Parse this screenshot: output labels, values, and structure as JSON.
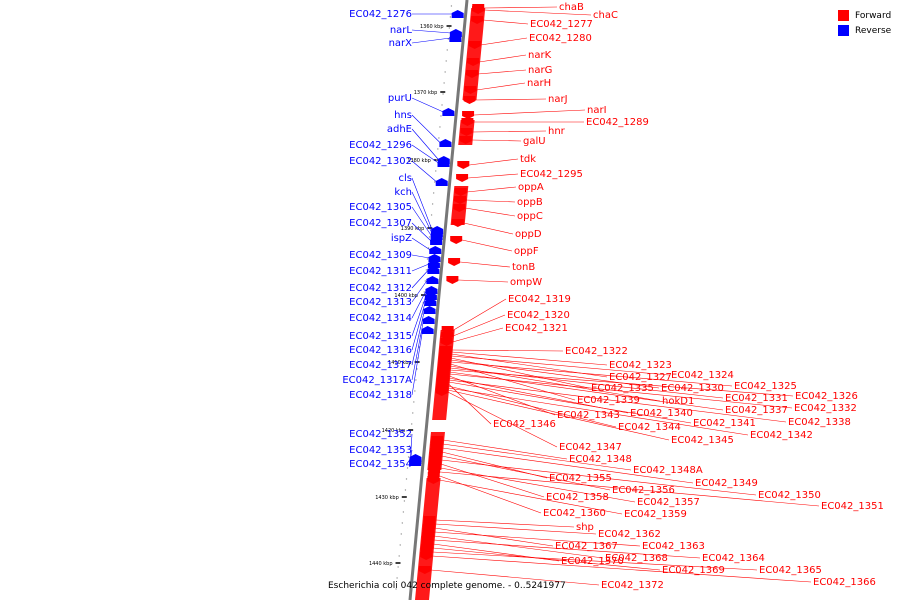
{
  "title": "Escherichia coli 042 complete genome. - 0..5241977",
  "legend": [
    {
      "label": "Forward",
      "color": "#ff0000"
    },
    {
      "label": "Reverse",
      "color": "#0000ff"
    }
  ],
  "colors": {
    "forward": "#ff0000",
    "reverse": "#0000ff",
    "backbone": "#777777"
  },
  "scale_labels": [
    "1360 kbp",
    "1370 kbp",
    "1380 kbp",
    "1390 kbp",
    "1400 kbp",
    "1410 kbp",
    "1420 kbp",
    "1430 kbp",
    "1440 kbp"
  ],
  "reverse_labels": [
    "EC042_1276",
    "narL",
    "narX",
    "purU",
    "hns",
    "adhE",
    "EC042_1296",
    "EC042_1302",
    "cls",
    "kch",
    "EC042_1305",
    "EC042_1307",
    "ispZ",
    "EC042_1309",
    "EC042_1311",
    "EC042_1312",
    "EC042_1313",
    "EC042_1314",
    "EC042_1315",
    "EC042_1316",
    "EC042_1317",
    "EC042_1317A",
    "EC042_1318",
    "EC042_1352",
    "EC042_1353",
    "EC042_1354"
  ],
  "forward_labels": [
    "chaB",
    "chaC",
    "EC042_1277",
    "EC042_1280",
    "narK",
    "narG",
    "narH",
    "narJ",
    "narI",
    "EC042_1289",
    "hnr",
    "galU",
    "tdk",
    "EC042_1295",
    "oppA",
    "oppB",
    "oppC",
    "oppD",
    "oppF",
    "tonB",
    "ompW",
    "EC042_1319",
    "EC042_1320",
    "EC042_1321",
    "EC042_1322",
    "EC042_1323",
    "EC042_1327",
    "EC042_1324",
    "EC042_1335",
    "EC042_1330",
    "EC042_1325",
    "EC042_1339",
    "hokD1",
    "EC042_1331",
    "EC042_1326",
    "EC042_1337",
    "EC042_1332",
    "EC042_1343",
    "EC042_1340",
    "EC042_1338",
    "EC042_1341",
    "EC042_1346",
    "EC042_1344",
    "EC042_1342",
    "EC042_1345",
    "EC042_1347",
    "EC042_1348",
    "EC042_1348A",
    "EC042_1349",
    "EC042_1355",
    "EC042_1356",
    "EC042_1350",
    "EC042_1358",
    "EC042_1357",
    "EC042_1351",
    "EC042_1360",
    "EC042_1359",
    "shp",
    "EC042_1362",
    "EC042_1367",
    "EC042_1363",
    "EC042_1368",
    "EC042_1364",
    "EC042_1370",
    "EC042_1369",
    "EC042_1365",
    "EC042_1366",
    "EC042_1372"
  ]
}
